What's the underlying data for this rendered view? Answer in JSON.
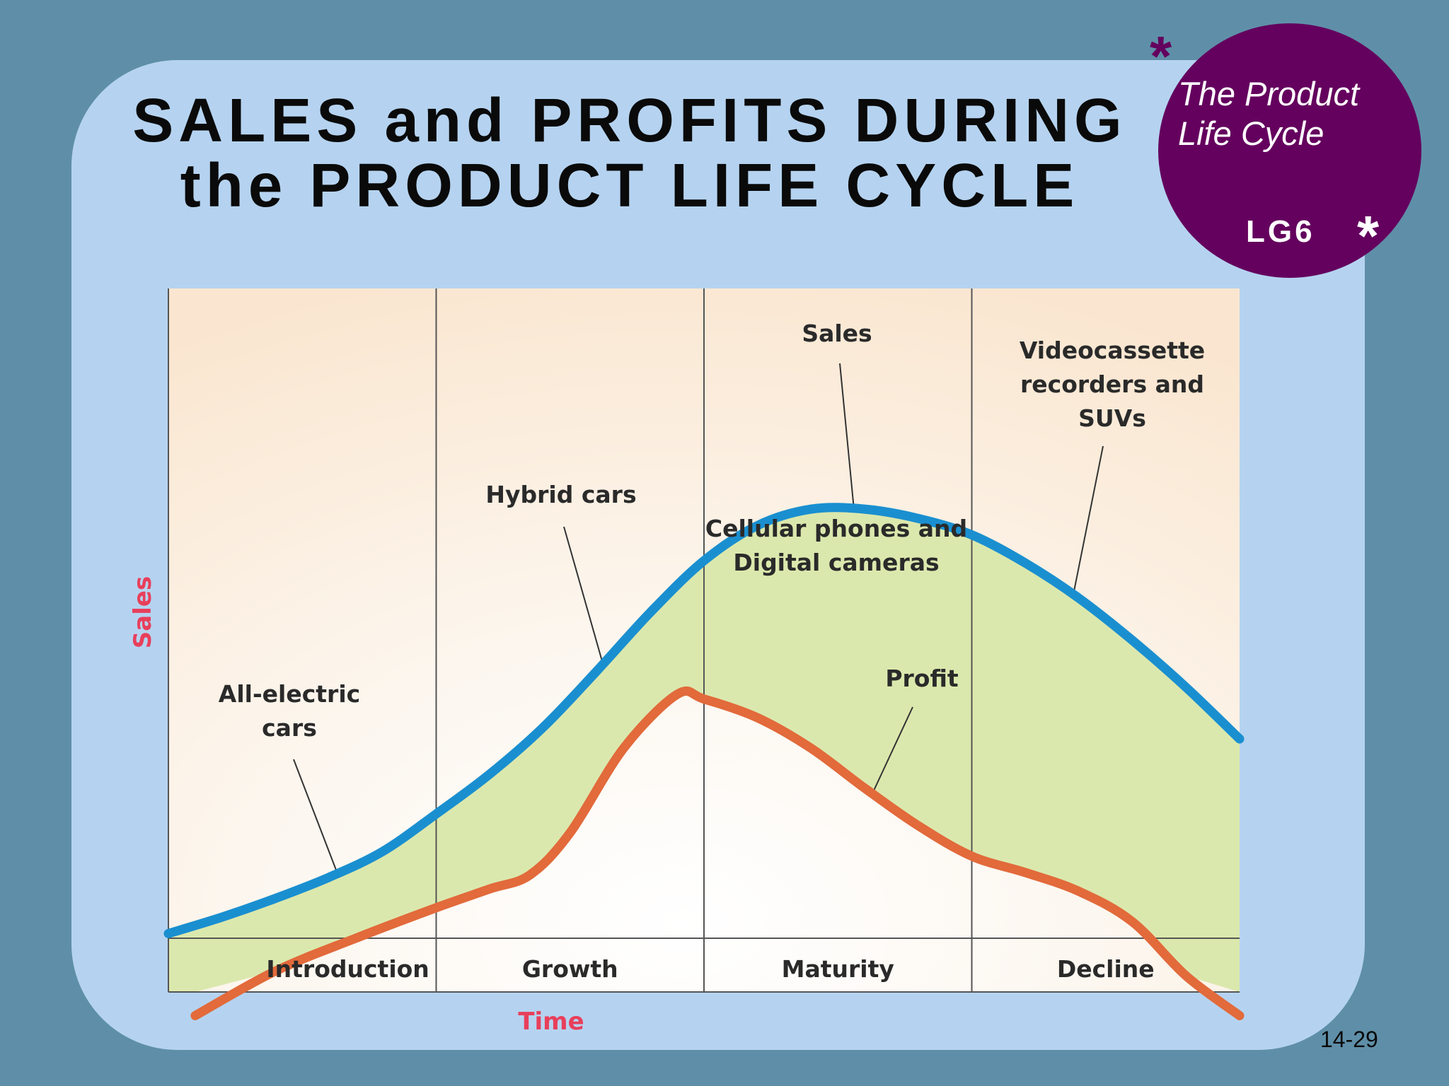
{
  "slide": {
    "title_line1": "SALES and PROFITS DURING",
    "title_line2": "the PRODUCT LIFE CYCLE",
    "badge_line1": "The Product",
    "badge_line2": "Life Cycle",
    "badge_code": "LG6",
    "asterisk": "*",
    "slide_number": "14-29",
    "colors": {
      "background": "#5f8fa8",
      "panel": "#b5d3f0",
      "badge": "#64015e"
    }
  },
  "chart_data": {
    "type": "line",
    "title": "",
    "xlabel": "Time",
    "ylabel": "Sales",
    "stages": [
      "Introduction",
      "Growth",
      "Maturity",
      "Decline"
    ],
    "series": [
      {
        "name": "Sales",
        "color": "#1a8fd0",
        "x": [
          0,
          0.2,
          0.4,
          0.6,
          0.8,
          1.0,
          1.2,
          1.4,
          1.6,
          1.8,
          2.0,
          2.2,
          2.4,
          2.6,
          2.8,
          3.0,
          3.2,
          3.4,
          3.6,
          3.8,
          4.0
        ],
        "y": [
          0.02,
          0.09,
          0.17,
          0.26,
          0.37,
          0.53,
          0.7,
          0.9,
          1.14,
          1.39,
          1.61,
          1.76,
          1.83,
          1.83,
          1.79,
          1.72,
          1.6,
          1.45,
          1.27,
          1.07,
          0.85
        ]
      },
      {
        "name": "Profit",
        "color": "#e26a3b",
        "x": [
          0.1,
          0.4,
          0.7,
          1.0,
          1.2,
          1.35,
          1.5,
          1.7,
          1.9,
          2.0,
          2.2,
          2.4,
          2.6,
          2.8,
          3.0,
          3.2,
          3.4,
          3.6,
          3.8,
          4.0
        ],
        "y": [
          -0.33,
          -0.14,
          0.0,
          0.13,
          0.21,
          0.27,
          0.45,
          0.81,
          1.04,
          1.02,
          0.94,
          0.81,
          0.64,
          0.48,
          0.35,
          0.28,
          0.2,
          0.07,
          -0.16,
          -0.33
        ]
      }
    ],
    "annotations": [
      {
        "text": [
          "All-electric",
          "cars"
        ],
        "x": 0.63,
        "y": 0.28
      },
      {
        "text": [
          "Hybrid cars"
        ],
        "x": 1.62,
        "y": 1.18
      },
      {
        "text": [
          "Sales"
        ],
        "x": 2.56,
        "y": 1.83
      },
      {
        "text": [
          "Cellular phones and",
          "Digital cameras"
        ],
        "x": 2.51,
        "y": 1.83
      },
      {
        "text": [
          "Profit"
        ],
        "x": 2.63,
        "y": 0.62
      },
      {
        "text": [
          "Videocassette",
          "recorders and",
          "SUVs"
        ],
        "x": 3.38,
        "y": 1.47
      }
    ],
    "xlim": [
      0,
      4
    ],
    "ylim": [
      -0.35,
      2.65
    ],
    "grid": false,
    "legend": "none"
  }
}
